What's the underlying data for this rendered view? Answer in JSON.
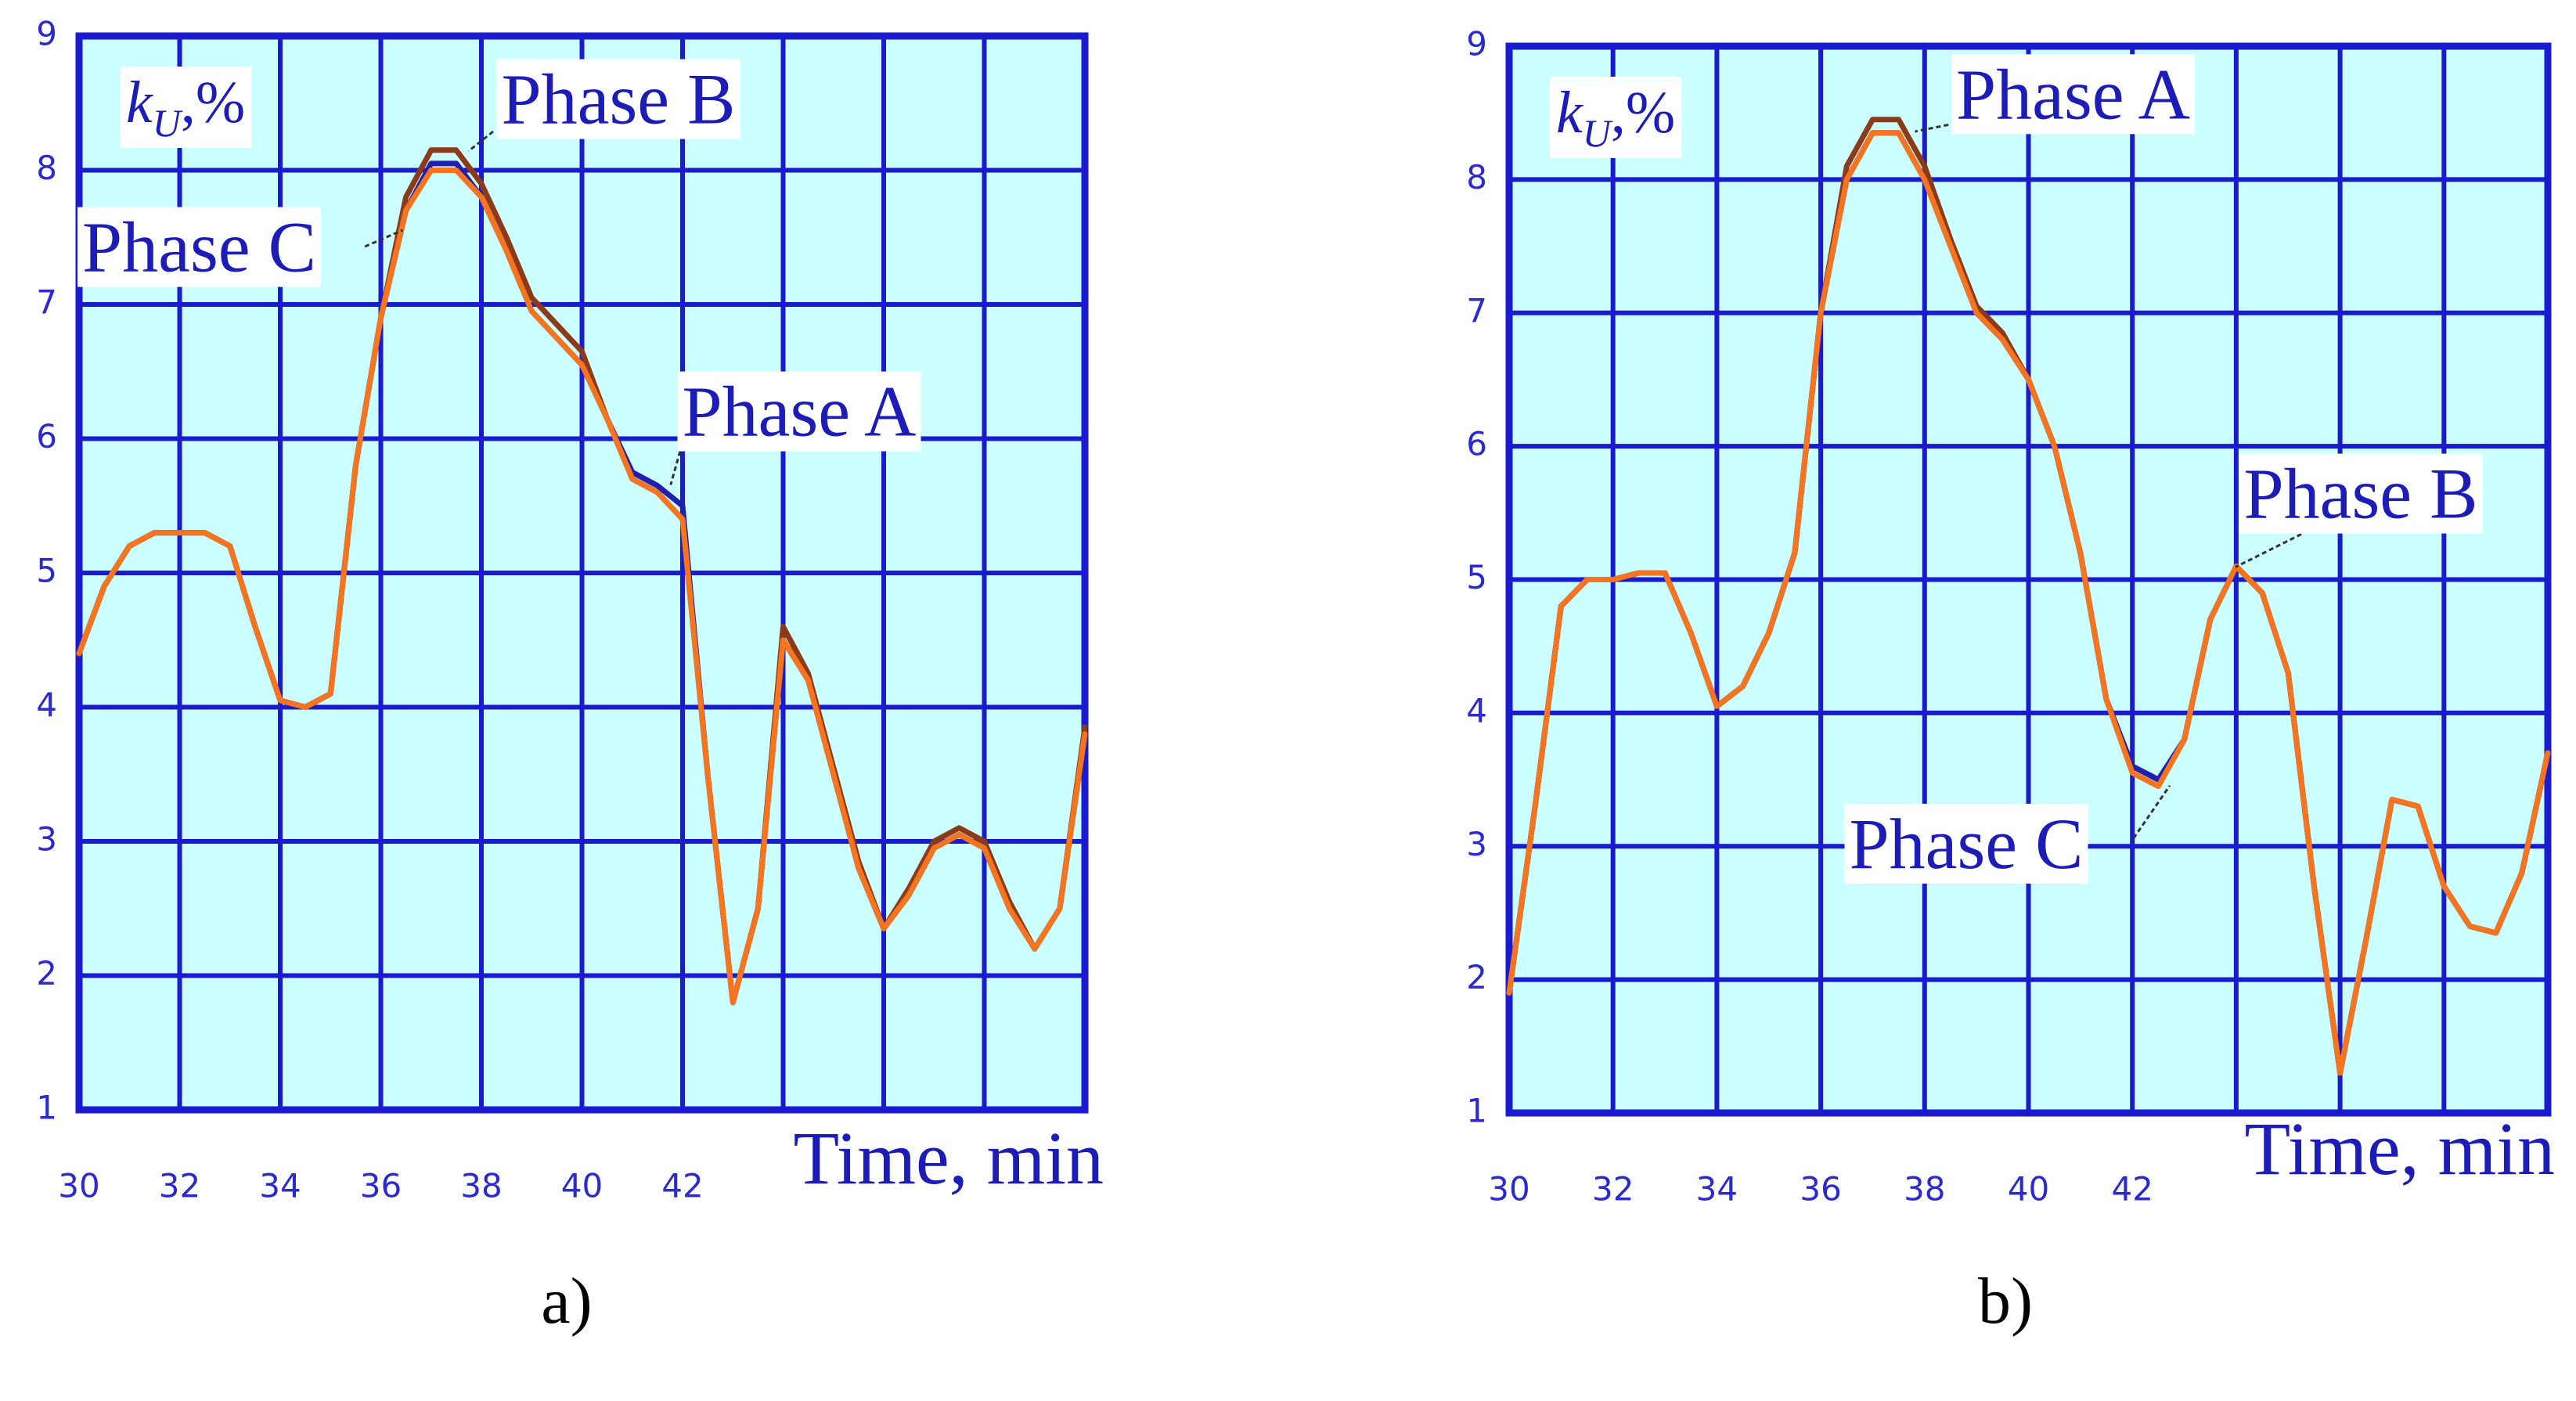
{
  "chart_data": [
    {
      "type": "line",
      "caption": "a)",
      "ylabel": {
        "symbol": "k",
        "subscript": "U",
        "unit": ",%"
      },
      "xlabel": "Time, min",
      "x": [
        30,
        30.5,
        31,
        31.5,
        32,
        32.5,
        33,
        33.5,
        34,
        34.5,
        35,
        35.5,
        36,
        36.5,
        37,
        37.5,
        38,
        38.5,
        39,
        39.5,
        40,
        40.5,
        41,
        41.5,
        42,
        42.5,
        43,
        43.5,
        44,
        44.5,
        45,
        45.5,
        46,
        46.5,
        47,
        47.5,
        48,
        48.5,
        49,
        49.5,
        50
      ],
      "xlim": [
        30,
        50
      ],
      "xticks": [
        30,
        32,
        34,
        36,
        38,
        40,
        42,
        {
          "value": 44,
          "label": null
        },
        {
          "value": 46,
          "label": null
        },
        {
          "value": 48,
          "label": null
        },
        {
          "value": 50,
          "label": null
        }
      ],
      "ylim": [
        1,
        9
      ],
      "yticks": [
        1,
        2,
        3,
        4,
        5,
        6,
        7,
        8,
        9
      ],
      "grid": true,
      "series": [
        {
          "name": "Phase A",
          "color": "#2020b0",
          "values": [
            4.4,
            4.9,
            5.2,
            5.3,
            5.3,
            5.3,
            5.2,
            4.6,
            4.05,
            4.0,
            4.1,
            5.8,
            6.9,
            7.7,
            8.05,
            8.05,
            7.8,
            7.4,
            6.95,
            6.75,
            6.55,
            6.15,
            5.75,
            5.65,
            5.5,
            3.5,
            1.8,
            2.5,
            4.5,
            4.2,
            3.5,
            2.8,
            2.35,
            2.6,
            2.95,
            3.05,
            2.95,
            2.5,
            2.2,
            2.5,
            3.8
          ]
        },
        {
          "name": "Phase B",
          "color": "#8b3a1a",
          "values": [
            4.4,
            4.9,
            5.2,
            5.3,
            5.3,
            5.3,
            5.2,
            4.6,
            4.05,
            4.0,
            4.1,
            5.8,
            6.9,
            7.8,
            8.15,
            8.15,
            7.9,
            7.5,
            7.05,
            6.85,
            6.65,
            6.15,
            5.7,
            5.6,
            5.4,
            3.5,
            1.8,
            2.5,
            4.6,
            4.25,
            3.55,
            2.85,
            2.35,
            2.65,
            3.0,
            3.1,
            3.0,
            2.55,
            2.2,
            2.5,
            3.85
          ]
        },
        {
          "name": "Phase C",
          "color": "#f7741f",
          "values": [
            4.4,
            4.9,
            5.2,
            5.3,
            5.3,
            5.3,
            5.2,
            4.6,
            4.05,
            4.0,
            4.1,
            5.8,
            6.9,
            7.7,
            8.0,
            8.0,
            7.8,
            7.4,
            6.95,
            6.75,
            6.55,
            6.15,
            5.7,
            5.6,
            5.4,
            3.5,
            1.8,
            2.5,
            4.5,
            4.2,
            3.5,
            2.8,
            2.35,
            2.6,
            2.95,
            3.05,
            2.95,
            2.5,
            2.2,
            2.5,
            3.8
          ]
        }
      ]
    },
    {
      "type": "line",
      "caption": "b)",
      "ylabel": {
        "symbol": "k",
        "subscript": "U",
        "unit": ",%"
      },
      "xlabel": "Time, min",
      "x": [
        30,
        30.5,
        31,
        31.5,
        32,
        32.5,
        33,
        33.5,
        34,
        34.5,
        35,
        35.5,
        36,
        36.5,
        37,
        37.5,
        38,
        38.5,
        39,
        39.5,
        40,
        40.5,
        41,
        41.5,
        42,
        42.5,
        43,
        43.5,
        44,
        44.5,
        45,
        45.5,
        46,
        46.5,
        47,
        47.5,
        48,
        48.5,
        49,
        49.5,
        50
      ],
      "xlim": [
        30,
        50
      ],
      "xticks": [
        30,
        32,
        34,
        36,
        38,
        40,
        42,
        {
          "value": 44,
          "label": null
        },
        {
          "value": 46,
          "label": null
        },
        {
          "value": 48,
          "label": null
        },
        {
          "value": 50,
          "label": null
        }
      ],
      "ylim": [
        1,
        9
      ],
      "yticks": [
        1,
        2,
        3,
        4,
        5,
        6,
        7,
        8,
        9
      ],
      "grid": true,
      "series": [
        {
          "name": "Phase A",
          "color": "#8b3a1a",
          "values": [
            1.9,
            3.3,
            4.8,
            5.0,
            5.0,
            5.05,
            5.05,
            4.6,
            4.05,
            4.2,
            4.6,
            5.2,
            7.0,
            8.1,
            8.45,
            8.45,
            8.1,
            7.55,
            7.05,
            6.85,
            6.5,
            6.0,
            5.2,
            4.1,
            3.6,
            3.5,
            3.8,
            4.7,
            5.1,
            4.9,
            4.3,
            2.7,
            1.3,
            2.3,
            3.35,
            3.3,
            2.7,
            2.4,
            2.35,
            2.8,
            3.7
          ]
        },
        {
          "name": "Phase B",
          "color": "#2020b0",
          "values": [
            1.9,
            3.3,
            4.8,
            5.0,
            5.0,
            5.05,
            5.05,
            4.6,
            4.05,
            4.2,
            4.6,
            5.2,
            7.0,
            8.0,
            8.35,
            8.35,
            8.0,
            7.5,
            7.0,
            6.8,
            6.5,
            6.0,
            5.2,
            4.1,
            3.6,
            3.5,
            3.8,
            4.7,
            5.1,
            4.9,
            4.3,
            2.7,
            1.3,
            2.3,
            3.35,
            3.3,
            2.7,
            2.4,
            2.35,
            2.8,
            3.7
          ]
        },
        {
          "name": "Phase C",
          "color": "#f7741f",
          "values": [
            1.9,
            3.3,
            4.8,
            5.0,
            5.0,
            5.05,
            5.05,
            4.6,
            4.05,
            4.2,
            4.6,
            5.2,
            7.0,
            8.0,
            8.35,
            8.35,
            8.0,
            7.5,
            7.0,
            6.8,
            6.5,
            6.0,
            5.2,
            4.1,
            3.55,
            3.45,
            3.8,
            4.7,
            5.1,
            4.9,
            4.3,
            2.7,
            1.3,
            2.3,
            3.35,
            3.3,
            2.7,
            2.4,
            2.35,
            2.8,
            3.7
          ]
        }
      ]
    }
  ]
}
